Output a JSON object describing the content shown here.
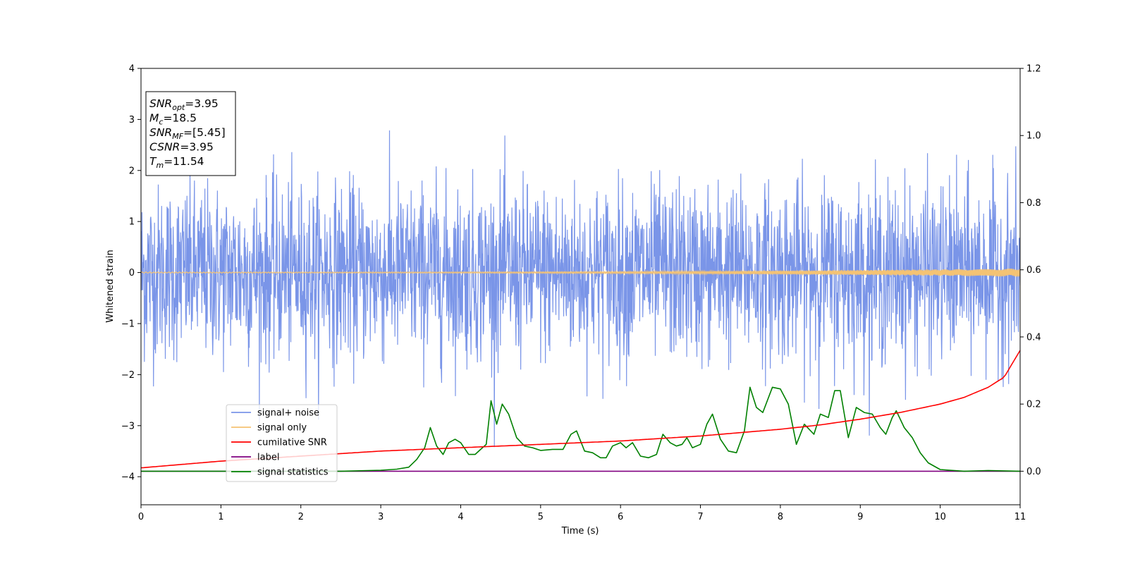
{
  "chart_data": {
    "type": "line",
    "xlabel": "Time (s)",
    "ylabel": "Whitened strain",
    "xlim": [
      0,
      11
    ],
    "ylim": [
      -4.55,
      4
    ],
    "y2lim": [
      -0.1,
      1.2
    ],
    "xticks": [
      "0",
      "1",
      "2",
      "3",
      "4",
      "5",
      "6",
      "7",
      "8",
      "9",
      "10",
      "11"
    ],
    "yticks": [
      "4",
      "3",
      "2",
      "1",
      "0",
      "−1",
      "−2",
      "−3",
      "−4"
    ],
    "y2ticks": [
      "1.2",
      "1.0",
      "0.8",
      "0.6",
      "0.4",
      "0.2",
      "0.0"
    ],
    "grid": false,
    "legend_position": "lower-left",
    "info_box": [
      {
        "sym": "SNR",
        "sub": "opt",
        "val": "=3.95"
      },
      {
        "sym": "M",
        "sub": "c",
        "val": "=18.5"
      },
      {
        "sym": "SNR",
        "sub": "MF",
        "val": "=[5.45]"
      },
      {
        "sym": "CSNR",
        "sub": "",
        "val": "=3.95"
      },
      {
        "sym": "T",
        "sub": "m",
        "val": "=11.54"
      }
    ],
    "series": [
      {
        "name": "signal+ noise",
        "color": "#7a95e8",
        "axis": "left",
        "noise_std": 0.85,
        "y_range": [
          -4.15,
          3.6
        ]
      },
      {
        "name": "signal only",
        "color": "#f5c373",
        "axis": "left",
        "amplitude_start": 0.01,
        "amplitude_end": 0.08
      },
      {
        "name": "cumilative SNR",
        "color": "#ff0000",
        "axis": "right",
        "x": [
          0,
          1,
          2,
          3,
          4,
          5,
          6,
          7,
          7.5,
          8,
          8.5,
          9,
          9.5,
          10,
          10.3,
          10.6,
          10.8,
          11
        ],
        "y": [
          0.01,
          0.03,
          0.045,
          0.06,
          0.07,
          0.08,
          0.09,
          0.105,
          0.115,
          0.125,
          0.138,
          0.155,
          0.175,
          0.2,
          0.22,
          0.25,
          0.28,
          0.36
        ]
      },
      {
        "name": "label",
        "color": "#800080",
        "axis": "right",
        "x": [
          0,
          11
        ],
        "y": [
          0.0,
          0.0
        ]
      },
      {
        "name": "signal statistics",
        "color": "#008000",
        "axis": "right",
        "x": [
          0,
          2.5,
          3.0,
          3.2,
          3.35,
          3.45,
          3.55,
          3.62,
          3.7,
          3.78,
          3.85,
          3.93,
          4.0,
          4.1,
          4.18,
          4.25,
          4.32,
          4.38,
          4.45,
          4.52,
          4.6,
          4.7,
          4.8,
          4.9,
          5.0,
          5.15,
          5.28,
          5.38,
          5.45,
          5.55,
          5.65,
          5.75,
          5.82,
          5.9,
          6.0,
          6.07,
          6.15,
          6.25,
          6.35,
          6.45,
          6.53,
          6.62,
          6.7,
          6.77,
          6.83,
          6.9,
          7.0,
          7.08,
          7.15,
          7.25,
          7.35,
          7.45,
          7.55,
          7.62,
          7.7,
          7.78,
          7.9,
          8.0,
          8.1,
          8.2,
          8.3,
          8.42,
          8.5,
          8.6,
          8.68,
          8.75,
          8.85,
          8.95,
          9.05,
          9.15,
          9.25,
          9.32,
          9.4,
          9.45,
          9.55,
          9.65,
          9.75,
          9.85,
          10.0,
          10.3,
          10.6,
          11.0
        ],
        "y": [
          0.0,
          0.0,
          0.003,
          0.006,
          0.012,
          0.035,
          0.07,
          0.13,
          0.075,
          0.05,
          0.085,
          0.095,
          0.085,
          0.05,
          0.05,
          0.065,
          0.08,
          0.21,
          0.14,
          0.2,
          0.17,
          0.1,
          0.075,
          0.07,
          0.062,
          0.065,
          0.065,
          0.11,
          0.12,
          0.06,
          0.055,
          0.04,
          0.04,
          0.075,
          0.085,
          0.07,
          0.085,
          0.045,
          0.04,
          0.05,
          0.11,
          0.085,
          0.075,
          0.08,
          0.1,
          0.07,
          0.08,
          0.14,
          0.17,
          0.095,
          0.06,
          0.055,
          0.12,
          0.25,
          0.19,
          0.175,
          0.25,
          0.245,
          0.2,
          0.08,
          0.14,
          0.11,
          0.17,
          0.16,
          0.24,
          0.24,
          0.1,
          0.19,
          0.175,
          0.17,
          0.13,
          0.11,
          0.16,
          0.18,
          0.13,
          0.1,
          0.055,
          0.025,
          0.005,
          0.0,
          0.002,
          0.0
        ]
      }
    ]
  }
}
